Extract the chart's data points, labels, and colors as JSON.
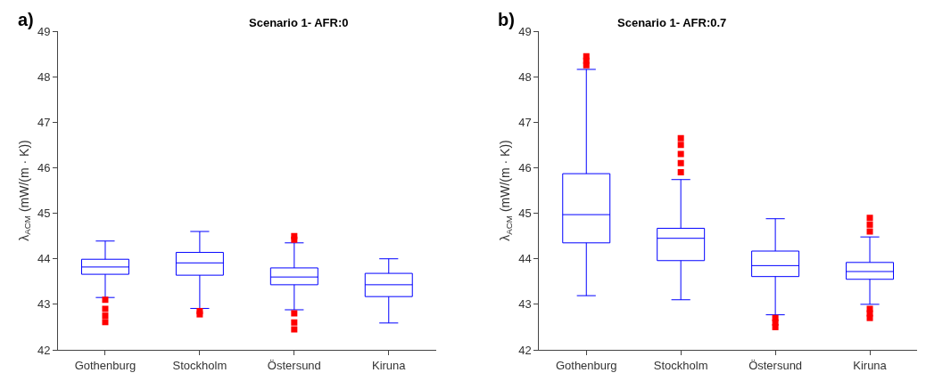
{
  "chart_data": [
    {
      "type": "box",
      "title": "Scenario 1- AFR:0",
      "ylabel": "λ$_{ACM}$ (mW/(m · K))",
      "annotations": [
        "a)"
      ],
      "categories": [
        "Gothenburg",
        "Stockholm",
        "Östersund",
        "Kiruna"
      ],
      "color": "#0000ff",
      "ylim": [
        42,
        49
      ],
      "yticks": [
        42,
        43,
        44,
        45,
        46,
        47,
        48,
        49
      ],
      "boxes": [
        {
          "low": 43.15,
          "q1": 43.66,
          "median": 43.82,
          "q3": 43.99,
          "high": 44.39,
          "outliers": [
            43.1,
            42.9,
            42.75,
            42.61
          ]
        },
        {
          "low": 42.91,
          "q1": 43.64,
          "median": 43.91,
          "q3": 44.14,
          "high": 44.6,
          "outliers": [
            42.85,
            42.78
          ]
        },
        {
          "low": 42.88,
          "q1": 43.43,
          "median": 43.6,
          "q3": 43.8,
          "high": 44.35,
          "outliers": [
            44.42,
            44.5,
            42.8,
            42.6,
            42.45
          ]
        },
        {
          "low": 42.59,
          "q1": 43.17,
          "median": 43.43,
          "q3": 43.68,
          "high": 44.0
        }
      ]
    },
    {
      "type": "box",
      "title": "Scenario 1- AFR:0.7",
      "ylabel": "λ$_{ACM}$ (mW/(m · K))",
      "annotations": [
        "b)"
      ],
      "categories": [
        "Gothenburg",
        "Stockholm",
        "Östersund",
        "Kiruna"
      ],
      "color": "#0000ff",
      "ylim": [
        42,
        49
      ],
      "yticks": [
        42,
        43,
        44,
        45,
        46,
        47,
        48,
        49
      ],
      "boxes": [
        {
          "low": 43.19,
          "q1": 44.35,
          "median": 44.97,
          "q3": 45.87,
          "high": 48.16,
          "outliers": [
            48.25,
            48.35,
            48.45
          ]
        },
        {
          "low": 43.1,
          "q1": 43.96,
          "median": 44.45,
          "q3": 44.67,
          "high": 45.74,
          "outliers": [
            45.9,
            46.1,
            46.3,
            46.5,
            46.65
          ]
        },
        {
          "low": 42.77,
          "q1": 43.61,
          "median": 43.85,
          "q3": 44.17,
          "high": 44.88,
          "outliers": [
            42.7,
            42.6,
            42.5
          ]
        },
        {
          "low": 43.0,
          "q1": 43.55,
          "median": 43.72,
          "q3": 43.92,
          "high": 44.48,
          "outliers": [
            44.6,
            44.75,
            44.9,
            42.9,
            42.8,
            42.7
          ]
        }
      ]
    }
  ]
}
